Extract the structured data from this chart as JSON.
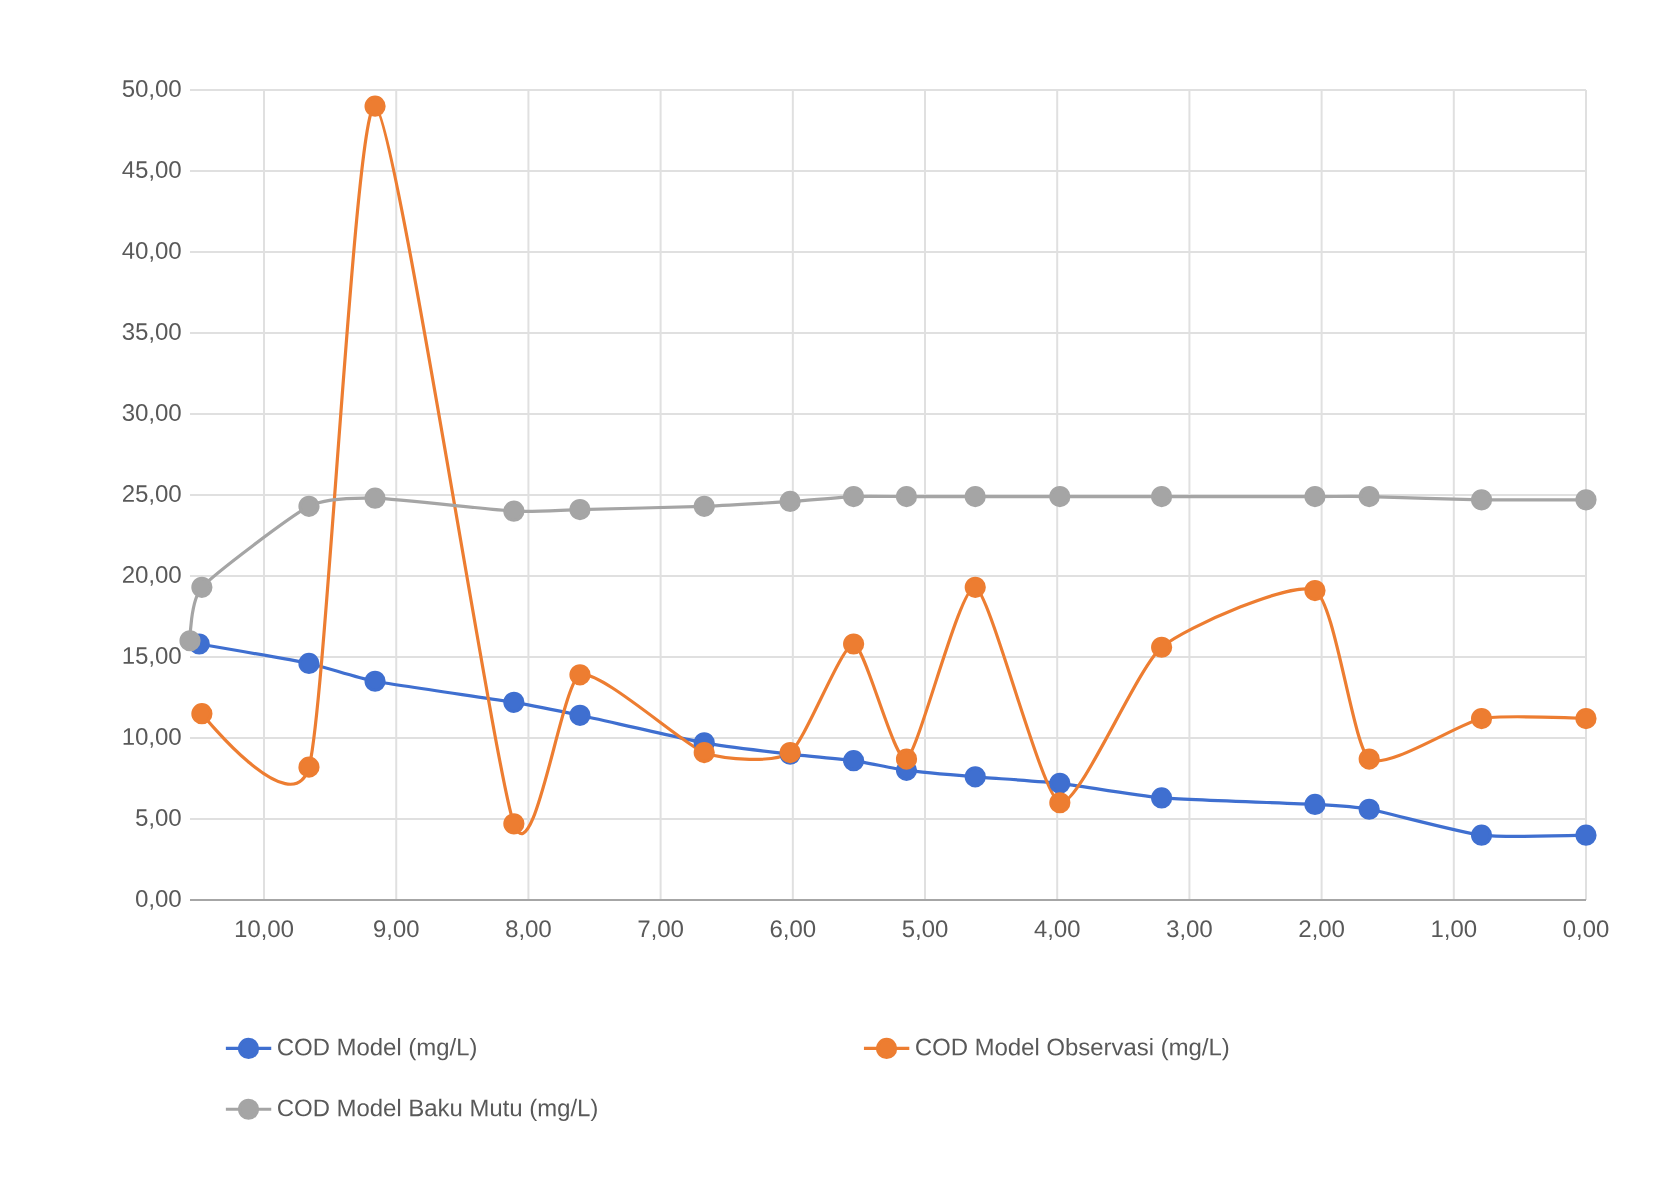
{
  "chart_data": {
    "type": "line",
    "xlim": [
      10.56,
      0
    ],
    "ylim": [
      0,
      50
    ],
    "xticks": [
      {
        "value": 10,
        "label": "10,00"
      },
      {
        "value": 9,
        "label": "9,00"
      },
      {
        "value": 8,
        "label": "8,00"
      },
      {
        "value": 7,
        "label": "7,00"
      },
      {
        "value": 6,
        "label": "6,00"
      },
      {
        "value": 5,
        "label": "5,00"
      },
      {
        "value": 4,
        "label": "4,00"
      },
      {
        "value": 3,
        "label": "3,00"
      },
      {
        "value": 2,
        "label": "2,00"
      },
      {
        "value": 1,
        "label": "1,00"
      },
      {
        "value": 0,
        "label": "0,00"
      }
    ],
    "yticks": [
      {
        "value": 0,
        "label": "0,00"
      },
      {
        "value": 5,
        "label": "5,00"
      },
      {
        "value": 10,
        "label": "10,00"
      },
      {
        "value": 15,
        "label": "15,00"
      },
      {
        "value": 20,
        "label": "20,00"
      },
      {
        "value": 25,
        "label": "25,00"
      },
      {
        "value": 30,
        "label": "30,00"
      },
      {
        "value": 35,
        "label": "35,00"
      },
      {
        "value": 40,
        "label": "40,00"
      },
      {
        "value": 45,
        "label": "45,00"
      },
      {
        "value": 50,
        "label": "50,00"
      }
    ],
    "grid": true,
    "legend": "bottom",
    "marker": "circle",
    "line_style": "solid",
    "series": [
      {
        "name": "COD Model (mg/L)",
        "color": "#3f6fd0",
        "x": [
          10.49,
          9.66,
          9.16,
          8.11,
          7.61,
          6.67,
          6.02,
          5.54,
          5.14,
          4.62,
          3.98,
          3.21,
          2.05,
          1.64,
          0.79,
          0
        ],
        "values": [
          15.8,
          14.6,
          13.5,
          12.2,
          11.4,
          9.7,
          9.0,
          8.6,
          8.0,
          7.6,
          7.2,
          6.3,
          5.9,
          5.6,
          4.0,
          4.0
        ]
      },
      {
        "name": "COD Model Observasi (mg/L)",
        "color": "#ed7d31",
        "x": [
          10.47,
          9.66,
          9.16,
          8.11,
          7.61,
          6.67,
          6.02,
          5.54,
          5.14,
          4.62,
          3.98,
          3.21,
          2.05,
          1.64,
          0.79,
          0
        ],
        "values": [
          11.5,
          8.2,
          49.0,
          4.7,
          13.9,
          9.1,
          9.1,
          15.8,
          8.7,
          19.3,
          6.0,
          15.6,
          19.1,
          8.7,
          11.2,
          11.2
        ]
      },
      {
        "name": "COD Model Baku Mutu (mg/L)",
        "color": "#a5a5a5",
        "x": [
          10.56,
          10.47,
          9.66,
          9.16,
          8.11,
          7.61,
          6.67,
          6.02,
          5.54,
          5.14,
          4.62,
          3.98,
          3.21,
          2.05,
          1.64,
          0.79,
          0
        ],
        "values": [
          16.0,
          19.3,
          24.3,
          24.8,
          24.0,
          24.1,
          24.3,
          24.6,
          24.9,
          24.9,
          24.9,
          24.9,
          24.9,
          24.9,
          24.9,
          24.7,
          24.7
        ]
      }
    ]
  }
}
